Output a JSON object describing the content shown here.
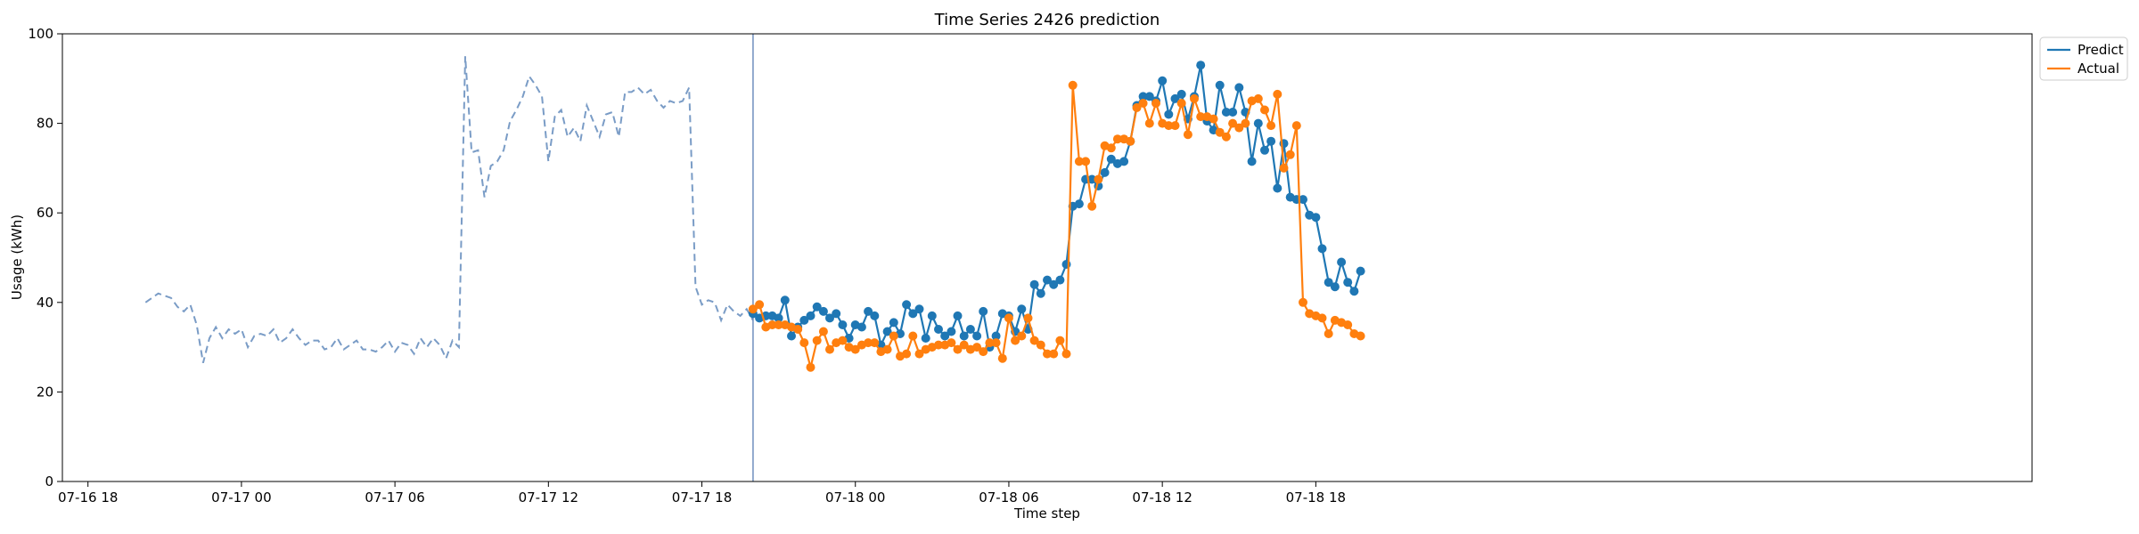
{
  "chart_data": {
    "type": "line",
    "title": "Time Series 2426 prediction",
    "xlabel": "Time step",
    "ylabel": "Usage (kWh)",
    "ylim": [
      0,
      100
    ],
    "yticks": [
      0,
      20,
      40,
      60,
      80,
      100
    ],
    "x_unit": "hours since 07-16 18:00",
    "xlim": [
      -1,
      76
    ],
    "xticks": [
      {
        "x": 0,
        "label": "07-16 18"
      },
      {
        "x": 6,
        "label": "07-17 00"
      },
      {
        "x": 12,
        "label": "07-17 06"
      },
      {
        "x": 18,
        "label": "07-17 12"
      },
      {
        "x": 24,
        "label": "07-17 18"
      },
      {
        "x": 30,
        "label": "07-18 00"
      },
      {
        "x": 36,
        "label": "07-18 06"
      },
      {
        "x": 42,
        "label": "07-18 12"
      },
      {
        "x": 48,
        "label": "07-18 18"
      }
    ],
    "forecast_start_x": 26,
    "grid": false,
    "legend_position": "top-right",
    "legend": [
      "Predict",
      "Actual"
    ],
    "colors": {
      "predict": "#1f77b4",
      "actual": "#ff7f0e",
      "history": "#7a9cc6",
      "divider": "#6f8fbf"
    },
    "history": {
      "x_start": 2.25,
      "x_step": 0.25,
      "values": [
        40,
        41,
        42,
        41.5,
        41,
        39,
        38,
        39.5,
        35,
        26.5,
        32,
        34.5,
        32,
        34,
        33,
        34,
        30,
        32.5,
        33,
        32.5,
        34,
        31,
        32,
        34,
        32,
        30.5,
        31.5,
        31.5,
        29.5,
        30,
        32,
        29.5,
        30.5,
        31.5,
        29.5,
        29.5,
        29,
        30,
        31.5,
        29,
        31,
        30.5,
        28.5,
        32,
        30,
        32,
        30.5,
        27.5,
        31.5,
        30,
        95,
        73.5,
        74,
        63.5,
        70.5,
        71.5,
        74,
        80.5,
        83,
        86,
        90.5,
        88.5,
        86,
        71.5,
        81.5,
        83,
        77,
        79,
        76,
        84,
        80.5,
        77,
        82,
        82.5,
        77,
        87,
        87,
        88,
        86.5,
        87.5,
        85,
        83.5,
        85,
        84.5,
        85,
        88,
        43.5,
        39.5,
        40.5,
        40,
        36,
        39.5,
        38,
        37,
        38.5,
        36
      ]
    },
    "series": [
      {
        "name": "Predict",
        "x_start": 26,
        "x_step": 0.25,
        "values": [
          37.5,
          36.5,
          37,
          37,
          36.5,
          40.5,
          32.5,
          34.5,
          36,
          37,
          39,
          38,
          36.5,
          37.5,
          35,
          32,
          35,
          34.5,
          38,
          37,
          30.5,
          33.5,
          35.5,
          33,
          39.5,
          37.5,
          38.5,
          32,
          37,
          34,
          32.5,
          33.5,
          37,
          32.5,
          34,
          32.5,
          38,
          30,
          32.5,
          37.5,
          37,
          33.5,
          38.5,
          34,
          44,
          42,
          45,
          44,
          45,
          48.5,
          61.5,
          62,
          67.5,
          67.5,
          66,
          69,
          72,
          71,
          71.5,
          76,
          84,
          86,
          86,
          85,
          89.5,
          82,
          85.5,
          86.5,
          81,
          86,
          93,
          80.5,
          78.5,
          88.5,
          82.5,
          82.5,
          88,
          82.5,
          71.5,
          80,
          74,
          76,
          65.5,
          75.5,
          63.5,
          63,
          63,
          59.5,
          59,
          52,
          44.5,
          43.5,
          49,
          44.5,
          42.5,
          47
        ]
      },
      {
        "name": "Actual",
        "x_start": 26,
        "x_step": 0.25,
        "values": [
          38.5,
          39.5,
          34.5,
          35,
          35,
          35,
          34.5,
          34,
          31,
          25.5,
          31.5,
          33.5,
          29.5,
          31,
          31.5,
          30,
          29.5,
          30.5,
          31,
          31,
          29,
          29.5,
          32.5,
          28,
          28.5,
          32.5,
          28.5,
          29.5,
          30,
          30.5,
          30.5,
          31,
          29.5,
          30.5,
          29.5,
          30,
          29,
          31,
          31,
          27.5,
          36.5,
          31.5,
          32.5,
          36.5,
          31.5,
          30.5,
          28.5,
          28.5,
          31.5,
          28.5,
          88.5,
          71.5,
          71.5,
          61.5,
          67.5,
          75,
          74.5,
          76.5,
          76.5,
          76,
          83.5,
          84.5,
          80,
          84.5,
          80,
          79.5,
          79.5,
          84.5,
          77.5,
          85.5,
          81.5,
          81.5,
          81,
          78,
          77,
          80,
          79,
          80,
          85,
          85.5,
          83,
          79.5,
          86.5,
          70,
          73,
          79.5,
          40,
          37.5,
          37,
          36.5,
          33,
          36,
          35.5,
          35,
          33,
          32.5
        ]
      }
    ]
  }
}
